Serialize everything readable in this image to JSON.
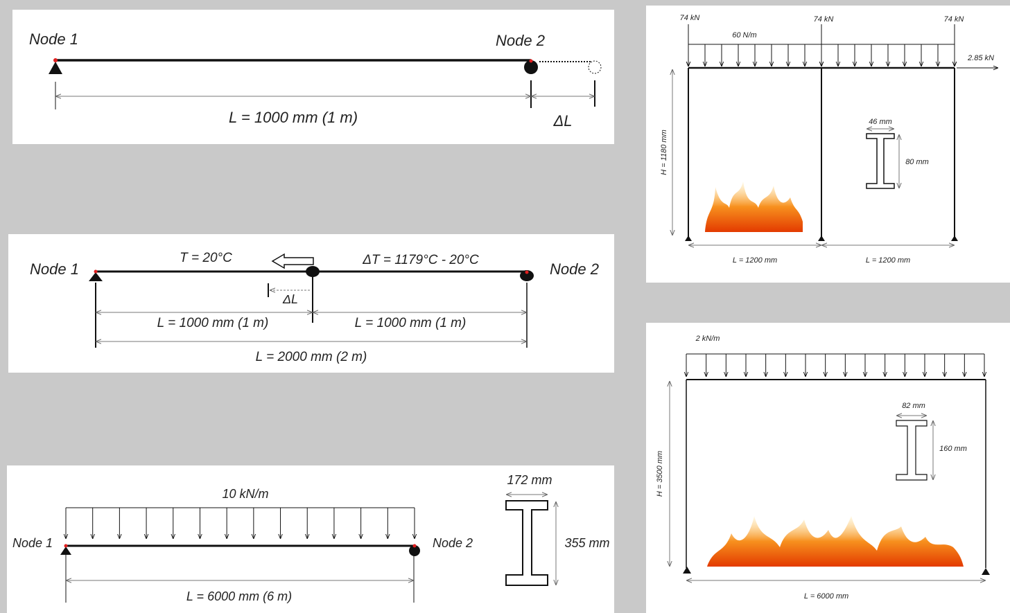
{
  "panels": [
    {
      "node_1": "Node 1",
      "node_2": "Node 2",
      "length": "L = 1000 mm (1 m)",
      "delta_l": "ΔL"
    },
    {
      "node_1": "Node 1",
      "node_2": "Node 2",
      "temperature": "T = 20°C",
      "delta_t": "ΔT = 1179°C - 20°C",
      "delta_l": "ΔL",
      "length_left": "L = 1000 mm (1 m)",
      "length_right": "L = 1000 mm (1 m)",
      "length_total": "L = 2000 mm (2 m)"
    },
    {
      "load": "10 kN/m",
      "node_1": "Node 1",
      "node_2": "Node 2",
      "length": "L = 6000 mm (6 m)",
      "flange_width": "172 mm",
      "section_depth": "355 mm"
    },
    {
      "point_loads": [
        "74 kN",
        "74 kN",
        "74 kN"
      ],
      "distributed_load": "60 N/m",
      "lateral_load": "2.85 kN",
      "height": "H = 1180 mm",
      "flange_width": "46 mm",
      "section_depth": "80 mm",
      "span_left": "L = 1200 mm",
      "span_right": "L = 1200 mm"
    },
    {
      "distributed_load": "2 kN/m",
      "flange_width": "82 mm",
      "section_depth": "160 mm",
      "height": "H = 3500 mm",
      "span": "L = 6000 mm"
    }
  ]
}
